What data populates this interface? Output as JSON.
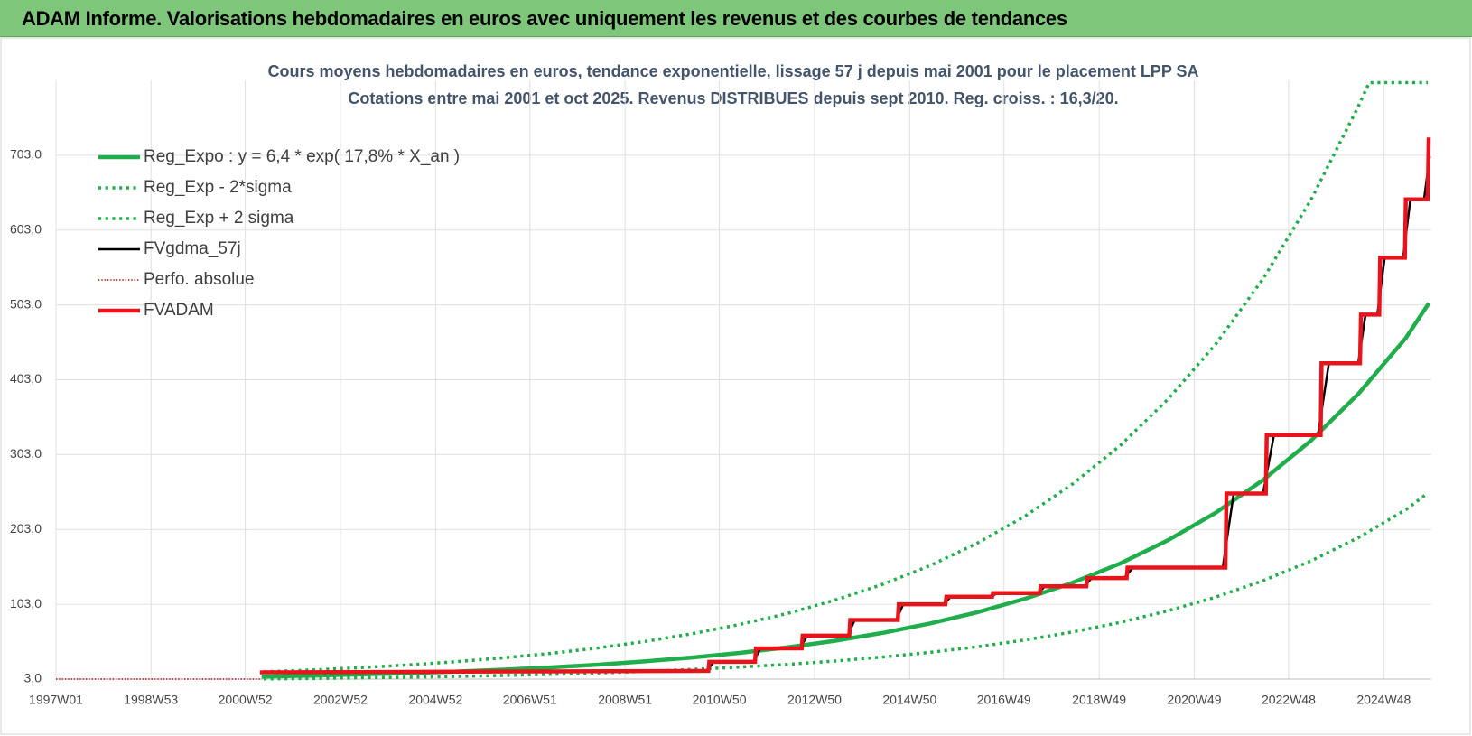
{
  "header": {
    "title": "ADAM Informe. Valorisations hebdomadaires en euros avec uniquement les revenus et des courbes de tendances"
  },
  "chart_data": {
    "type": "line",
    "title": "Cours moyens hebdomadaires en euros, tendance exponentielle, lissage 57 j depuis mai 2001 pour le placement LPP SA",
    "subtitle": "Cotations entre mai 2001 et oct 2025. Revenus DISTRIBUES depuis sept 2010. Reg. croiss. : 16,3/20.",
    "xlim": [
      "1997W01",
      "2025W48"
    ],
    "xticks": [
      "1997W01",
      "1998W53",
      "2000W52",
      "2002W52",
      "2004W52",
      "2006W51",
      "2008W51",
      "2010W50",
      "2012W50",
      "2014W50",
      "2016W49",
      "2018W49",
      "2020W49",
      "2022W48",
      "2024W48"
    ],
    "ylim": [
      3,
      803
    ],
    "yticks": [
      {
        "value": 3,
        "label": "3,0"
      },
      {
        "value": 103,
        "label": "103,0"
      },
      {
        "value": 203,
        "label": "203,0"
      },
      {
        "value": 303,
        "label": "303,0"
      },
      {
        "value": 403,
        "label": "403,0"
      },
      {
        "value": 503,
        "label": "503,0"
      },
      {
        "value": 603,
        "label": "603,0"
      },
      {
        "value": 703,
        "label": "703,0"
      }
    ],
    "grid": true,
    "legend": "upper left",
    "series": [
      {
        "name": "Reg_Expo : y = 6,4 * exp( 17,8% *  X_an )",
        "color": "#1fae4b",
        "line_style": "solid",
        "width": 4.5,
        "x": [
          "2001W20",
          "2002W20",
          "2003W20",
          "2004W20",
          "2005W20",
          "2006W20",
          "2007W20",
          "2008W20",
          "2009W20",
          "2010W20",
          "2011W20",
          "2012W20",
          "2013W20",
          "2014W20",
          "2015W20",
          "2016W20",
          "2017W20",
          "2018W20",
          "2019W20",
          "2020W20",
          "2021W20",
          "2022W20",
          "2023W20",
          "2024W20",
          "2025W20",
          "2025W44"
        ],
        "values": [
          6.4,
          7.6,
          9.1,
          10.9,
          13.0,
          15.6,
          18.6,
          22.2,
          26.6,
          31.8,
          38.0,
          45.3,
          54.2,
          64.7,
          77.3,
          92.4,
          110.4,
          131.9,
          157.6,
          188.4,
          225.0,
          268.9,
          321.3,
          383.9,
          458.7,
          503
        ]
      },
      {
        "name": "Reg_Exp - 2*sigma",
        "color": "#1fae4b",
        "line_style": "dotted",
        "width": 3.5,
        "x": [
          "2001W20",
          "2002W20",
          "2003W20",
          "2004W20",
          "2005W20",
          "2006W20",
          "2007W20",
          "2008W20",
          "2009W20",
          "2010W20",
          "2011W20",
          "2012W20",
          "2013W20",
          "2014W20",
          "2015W20",
          "2016W20",
          "2017W20",
          "2018W20",
          "2019W20",
          "2020W20",
          "2021W20",
          "2022W20",
          "2023W20",
          "2024W20",
          "2025W20",
          "2025W44"
        ],
        "values": [
          3.2,
          3.8,
          4.6,
          5.5,
          6.5,
          7.8,
          9.3,
          11.1,
          13.3,
          15.9,
          19.0,
          22.7,
          27.1,
          32.4,
          38.7,
          46.2,
          55.2,
          66.0,
          78.8,
          94.2,
          112.5,
          134.5,
          160.7,
          192.0,
          229.4,
          251.5
        ]
      },
      {
        "name": "Reg_Exp + 2 sigma",
        "color": "#1fae4b",
        "line_style": "dotted",
        "width": 3.5,
        "x": [
          "2001W20",
          "2002W20",
          "2003W20",
          "2004W20",
          "2005W20",
          "2006W20",
          "2007W20",
          "2008W20",
          "2009W20",
          "2010W20",
          "2011W20",
          "2012W20",
          "2013W20",
          "2014W20",
          "2015W20",
          "2016W20",
          "2017W20",
          "2018W20",
          "2019W20",
          "2020W20",
          "2021W20",
          "2022W20",
          "2023W20",
          "2024W20",
          "2024W32",
          "2025W44"
        ],
        "values": [
          12.8,
          15.2,
          18.2,
          21.8,
          26.0,
          31.2,
          37.2,
          44.4,
          53.2,
          63.6,
          76.0,
          90.6,
          108.4,
          129.4,
          154.6,
          184.8,
          220.8,
          263.8,
          315.2,
          376.8,
          450.0,
          537.8,
          642.6,
          767.8,
          800,
          800
        ]
      },
      {
        "name": "FVgdma_57j",
        "color": "#000000",
        "line_style": "solid",
        "width": 2.5,
        "x": [
          "2001W18",
          "2010W36",
          "2010W44",
          "2011W35",
          "2011W43",
          "2012W34",
          "2012W42",
          "2013W34",
          "2013W42",
          "2014W35",
          "2014W43",
          "2015W35",
          "2015W43",
          "2016W34",
          "2016W42",
          "2017W34",
          "2017W42",
          "2018W33",
          "2018W41",
          "2019W24",
          "2019W34",
          "2021W28",
          "2021W40",
          "2022W20",
          "2022W32",
          "2023W28",
          "2023W40",
          "2024W20",
          "2024W28",
          "2024W41",
          "2024W49",
          "2025W17",
          "2025W25",
          "2025W40",
          "2025W46"
        ],
        "values": [
          12,
          14,
          26,
          26,
          44,
          44,
          61,
          61,
          82,
          82,
          103,
          103,
          113,
          113,
          118,
          118,
          127,
          127,
          138,
          138,
          152,
          152,
          251,
          251,
          329,
          329,
          425,
          425,
          490,
          490,
          566,
          566,
          644,
          644,
          700
        ]
      },
      {
        "name": "Perfo. absolue",
        "color": "#c00000",
        "line_style": "dotted",
        "width": 1.5,
        "x": [
          "1997W01",
          "2001W18"
        ],
        "values": [
          3,
          3
        ]
      },
      {
        "name": "FVADAM",
        "color": "#e8141b",
        "line_style": "solid",
        "width": 4.5,
        "x": [
          "2001W18",
          "2010W38",
          "2010W39",
          "2011W37",
          "2011W38",
          "2012W36",
          "2012W37",
          "2013W36",
          "2013W37",
          "2014W37",
          "2014W38",
          "2015W37",
          "2015W38",
          "2016W36",
          "2016W37",
          "2017W36",
          "2017W37",
          "2018W35",
          "2018W36",
          "2019W27",
          "2019W28",
          "2021W31",
          "2021W32",
          "2022W23",
          "2022W24",
          "2023W31",
          "2023W32",
          "2024W22",
          "2024W23",
          "2024W43",
          "2024W44",
          "2025W19",
          "2025W20",
          "2025W44",
          "2025W45"
        ],
        "values": [
          12,
          14,
          26,
          26,
          44,
          44,
          61,
          61,
          82,
          82,
          103,
          103,
          113,
          113,
          118,
          118,
          127,
          127,
          138,
          138,
          152,
          152,
          251,
          251,
          329,
          329,
          425,
          425,
          490,
          490,
          566,
          566,
          644,
          644,
          724
        ]
      }
    ]
  }
}
